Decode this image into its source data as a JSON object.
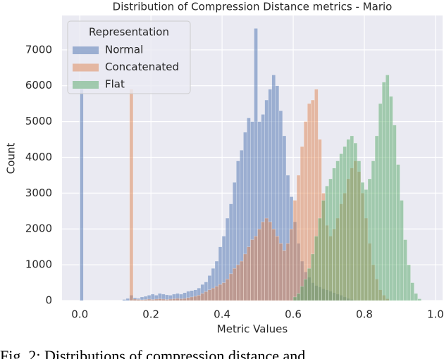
{
  "chart_data": {
    "type": "histogram",
    "title": "Distribution of Compression Distance metrics - Mario",
    "xlabel": "Metric Values",
    "ylabel": "Count",
    "bins": [
      0,
      0.01,
      0.02,
      0.03,
      0.04,
      0.05,
      0.06,
      0.07,
      0.08,
      0.09,
      0.1,
      0.11,
      0.12,
      0.13,
      0.14,
      0.15,
      0.16,
      0.17,
      0.18,
      0.19,
      0.2,
      0.21,
      0.22,
      0.23,
      0.24,
      0.25,
      0.26,
      0.27,
      0.28,
      0.29,
      0.3,
      0.31,
      0.32,
      0.33,
      0.34,
      0.35,
      0.36,
      0.37,
      0.38,
      0.39,
      0.4,
      0.41,
      0.42,
      0.43,
      0.44,
      0.45,
      0.46,
      0.47,
      0.48,
      0.49,
      0.5,
      0.51,
      0.52,
      0.53,
      0.54,
      0.55,
      0.56,
      0.57,
      0.58,
      0.59,
      0.6,
      0.61,
      0.62,
      0.63,
      0.64,
      0.65,
      0.66,
      0.67,
      0.68,
      0.69,
      0.7,
      0.71,
      0.72,
      0.73,
      0.74,
      0.75,
      0.76,
      0.77,
      0.78,
      0.79,
      0.8,
      0.81,
      0.82,
      0.83,
      0.84,
      0.85,
      0.86,
      0.87,
      0.88,
      0.89,
      0.9,
      0.91,
      0.92,
      0.93,
      0.94,
      0.95,
      0.96
    ],
    "series": [
      {
        "name": "Normal",
        "color": "#4c72b0",
        "values": [
          5900,
          0,
          0,
          0,
          0,
          0,
          0,
          0,
          0,
          0,
          0,
          0,
          30,
          60,
          150,
          80,
          60,
          100,
          120,
          150,
          180,
          150,
          200,
          180,
          160,
          150,
          180,
          200,
          180,
          220,
          260,
          280,
          300,
          350,
          450,
          520,
          700,
          900,
          1100,
          1500,
          1800,
          2300,
          2700,
          3300,
          3900,
          4200,
          4700,
          5100,
          5000,
          7600,
          5000,
          5200,
          5600,
          5900,
          6300,
          6000,
          5300,
          4600,
          3500,
          2900,
          2200,
          1600,
          1100,
          800,
          650,
          500,
          420,
          380,
          330,
          300,
          260,
          220,
          180,
          150,
          100,
          60,
          30,
          0,
          0,
          0,
          0,
          0,
          0,
          0,
          0,
          0,
          0,
          0,
          0,
          0,
          0,
          0,
          0,
          0,
          0,
          0
        ]
      },
      {
        "name": "Concatenated",
        "color": "#dd8452",
        "values": [
          0,
          0,
          0,
          0,
          0,
          0,
          0,
          0,
          0,
          0,
          0,
          0,
          0,
          0,
          5900,
          40,
          30,
          20,
          30,
          40,
          30,
          40,
          50,
          40,
          30,
          40,
          50,
          60,
          50,
          60,
          80,
          100,
          120,
          150,
          200,
          250,
          300,
          350,
          400,
          450,
          500,
          600,
          750,
          900,
          1000,
          1100,
          1300,
          1500,
          1700,
          1800,
          2000,
          2200,
          2300,
          2200,
          2000,
          1800,
          1600,
          1400,
          1600,
          2000,
          2800,
          3500,
          4300,
          5000,
          5500,
          5600,
          5900,
          4500,
          3000,
          2100,
          1800,
          2000,
          2300,
          2700,
          3000,
          3400,
          3700,
          3900,
          3600,
          3000,
          2300,
          1600,
          1000,
          600,
          300,
          150,
          50,
          0,
          0,
          0,
          0,
          0,
          0,
          0,
          0,
          0
        ]
      },
      {
        "name": "Flat",
        "color": "#55a868",
        "values": [
          0,
          0,
          0,
          0,
          0,
          0,
          0,
          0,
          0,
          0,
          0,
          0,
          0,
          0,
          0,
          0,
          0,
          0,
          0,
          0,
          0,
          0,
          0,
          0,
          0,
          0,
          0,
          0,
          0,
          0,
          0,
          0,
          0,
          0,
          0,
          0,
          0,
          0,
          0,
          0,
          0,
          0,
          0,
          0,
          0,
          0,
          0,
          0,
          0,
          0,
          0,
          0,
          0,
          0,
          0,
          0,
          0,
          0,
          0,
          0,
          100,
          200,
          400,
          600,
          900,
          1300,
          1800,
          2300,
          2800,
          3200,
          3400,
          3700,
          3900,
          4100,
          4300,
          4500,
          4600,
          4400,
          3900,
          3300,
          3100,
          3400,
          3900,
          4600,
          5500,
          6100,
          6300,
          5700,
          4900,
          3800,
          2800,
          1700,
          1000,
          500,
          200,
          50
        ]
      }
    ],
    "legend_title": "Representation",
    "legend": "upper left",
    "opacity": 0.5,
    "xlim": [
      -0.05,
      1.02
    ],
    "ylim": [
      0,
      7960
    ],
    "xticks": [
      {
        "value": 0,
        "label": "0.0"
      },
      0.2,
      0.4,
      0.6,
      0.8,
      {
        "value": 1,
        "label": "1.0"
      }
    ],
    "yticks": [
      0,
      1000,
      2000,
      3000,
      4000,
      5000,
      6000,
      7000
    ],
    "grid": true
  },
  "caption": "Fig. 2: Distributions of compression distance and"
}
